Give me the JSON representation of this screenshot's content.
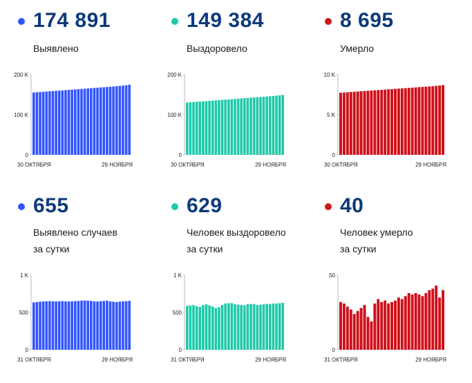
{
  "panels": [
    {
      "value": "174 891",
      "label_lines": [
        "Выявлено"
      ],
      "color": "#3355ff",
      "dot_color": "#3355ff"
    },
    {
      "value": "149 384",
      "label_lines": [
        "Выздоровело"
      ],
      "color": "#1ec9a8",
      "dot_color": "#1ec9a8"
    },
    {
      "value": "8 695",
      "label_lines": [
        "Умерло"
      ],
      "color": "#d0101a",
      "dot_color": "#cc1a1a"
    },
    {
      "value": "655",
      "label_lines": [
        "Выявлено случаев",
        "за сутки"
      ],
      "color": "#3355ff",
      "dot_color": "#3355ff"
    },
    {
      "value": "629",
      "label_lines": [
        "Человек выздоровело",
        "за сутки"
      ],
      "color": "#1ec9a8",
      "dot_color": "#1ec9a8"
    },
    {
      "value": "40",
      "label_lines": [
        "Человек умерло",
        "за сутки"
      ],
      "color": "#d0101a",
      "dot_color": "#cc1a1a"
    }
  ],
  "chart_data": [
    {
      "type": "bar",
      "series_color": "#3355ff",
      "ylim": [
        0,
        200000
      ],
      "yticks": [
        {
          "v": 0,
          "label": "0"
        },
        {
          "v": 100000,
          "label": "100 K"
        },
        {
          "v": 200000,
          "label": "200 K"
        }
      ],
      "x_start_label": "30 ОКТЯБРЯ",
      "x_end_label": "29 НОЯБРЯ",
      "values": [
        155500,
        156100,
        156700,
        157300,
        157900,
        158500,
        159100,
        159700,
        160300,
        160900,
        161500,
        162100,
        162700,
        163300,
        163900,
        164500,
        165100,
        165700,
        166300,
        166900,
        167500,
        168100,
        168700,
        169300,
        169900,
        170500,
        171200,
        172000,
        172900,
        173700,
        174891
      ]
    },
    {
      "type": "bar",
      "series_color": "#1ec9a8",
      "ylim": [
        0,
        200000
      ],
      "yticks": [
        {
          "v": 0,
          "label": "0"
        },
        {
          "v": 100000,
          "label": "100 K"
        },
        {
          "v": 200000,
          "label": "200 K"
        }
      ],
      "x_start_label": "30 ОКТЯБРЯ",
      "x_end_label": "29 НОЯБРЯ",
      "values": [
        130500,
        131100,
        131700,
        132300,
        132900,
        133500,
        134100,
        134700,
        135300,
        135900,
        136500,
        137100,
        137700,
        138300,
        138900,
        139500,
        140100,
        140700,
        141300,
        141900,
        142500,
        143100,
        143700,
        144300,
        144900,
        145500,
        146100,
        146800,
        147600,
        148500,
        149384
      ]
    },
    {
      "type": "bar",
      "series_color": "#d0101a",
      "ylim": [
        0,
        10000
      ],
      "yticks": [
        {
          "v": 0,
          "label": "0"
        },
        {
          "v": 5000,
          "label": "5 K"
        },
        {
          "v": 10000,
          "label": "10 K"
        }
      ],
      "x_start_label": "30 ОКТЯБРЯ",
      "x_end_label": "29 НОЯБРЯ",
      "values": [
        7750,
        7780,
        7810,
        7840,
        7870,
        7900,
        7930,
        7960,
        7990,
        8020,
        8050,
        8080,
        8110,
        8140,
        8170,
        8200,
        8230,
        8260,
        8290,
        8320,
        8350,
        8380,
        8410,
        8440,
        8470,
        8500,
        8530,
        8560,
        8600,
        8650,
        8695
      ]
    },
    {
      "type": "bar",
      "series_color": "#3355ff",
      "ylim": [
        0,
        1000
      ],
      "yticks": [
        {
          "v": 0,
          "label": "0"
        },
        {
          "v": 500,
          "label": "500"
        },
        {
          "v": 1000,
          "label": "1 K"
        }
      ],
      "x_start_label": "31 ОКТЯБРЯ",
      "x_end_label": "29 НОЯБРЯ",
      "values": [
        635,
        640,
        645,
        648,
        650,
        652,
        650,
        648,
        650,
        652,
        650,
        648,
        650,
        652,
        655,
        658,
        660,
        658,
        655,
        650,
        648,
        652,
        655,
        658,
        650,
        645,
        640,
        645,
        650,
        652,
        655
      ]
    },
    {
      "type": "bar",
      "series_color": "#1ec9a8",
      "ylim": [
        0,
        1000
      ],
      "yticks": [
        {
          "v": 0,
          "label": "0"
        },
        {
          "v": 500,
          "label": "500"
        },
        {
          "v": 1000,
          "label": "1 K"
        }
      ],
      "x_start_label": "31 ОКТЯБРЯ",
      "x_end_label": "29 НОЯБРЯ",
      "values": [
        590,
        595,
        600,
        585,
        575,
        600,
        610,
        595,
        580,
        560,
        570,
        600,
        620,
        625,
        625,
        610,
        605,
        600,
        595,
        610,
        615,
        610,
        600,
        605,
        610,
        615,
        615,
        620,
        620,
        625,
        629
      ]
    },
    {
      "type": "bar",
      "series_color": "#d0101a",
      "ylim": [
        0,
        50
      ],
      "yticks": [
        {
          "v": 0,
          "label": "0"
        },
        {
          "v": 50,
          "label": "50"
        }
      ],
      "x_start_label": "31 ОКТЯБРЯ",
      "x_end_label": "29 НОЯБРЯ",
      "values": [
        32,
        31,
        29,
        27,
        24,
        26,
        28,
        30,
        22,
        19,
        31,
        34,
        32,
        33,
        31,
        32,
        33,
        35,
        34,
        36,
        38,
        37,
        38,
        37,
        36,
        38,
        40,
        41,
        43,
        35,
        40
      ]
    }
  ]
}
